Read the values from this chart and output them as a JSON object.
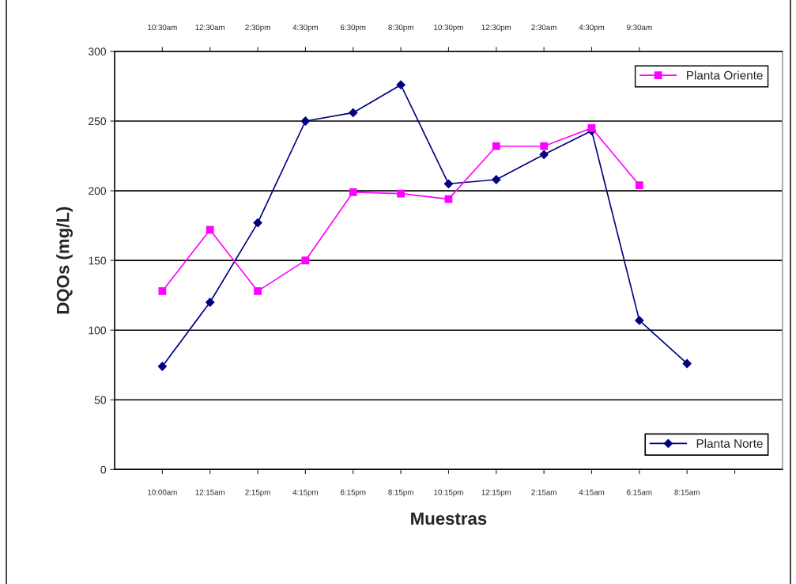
{
  "chart_data": {
    "type": "line",
    "xlabel": "Muestras",
    "ylabel": "DQOs (mg/L)",
    "categories": [
      "10:00am",
      "12:15am",
      "2:15pm",
      "4:15pm",
      "6:15pm",
      "8:15pm",
      "10:15pm",
      "12:15pm",
      "2:15am",
      "4:15am",
      "6:15am",
      "8:15am",
      null
    ],
    "series": [
      {
        "name": "Planta Oriente",
        "color": "#ff00ff",
        "marker": "square",
        "values": [
          128,
          172,
          128,
          150,
          199,
          198,
          194,
          232,
          232,
          245,
          204,
          null,
          null
        ]
      },
      {
        "name": "Planta Norte",
        "color": "#000080",
        "marker": "diamond",
        "values": [
          74,
          120,
          177,
          250,
          256,
          276,
          205,
          208,
          226,
          243,
          107,
          76,
          null
        ]
      }
    ],
    "annotations": [
      "10:30am",
      "12:30am",
      "2:30pm",
      "4:30pm",
      "6:30pm",
      "8:30pm",
      "10:30pm",
      "12:30pm",
      "2:30am",
      "4:30pm",
      "9:30am"
    ],
    "ylim": [
      0,
      300
    ],
    "yticks": [
      0,
      50,
      100,
      150,
      200,
      250,
      300
    ],
    "grid": "y",
    "legend": "right"
  }
}
